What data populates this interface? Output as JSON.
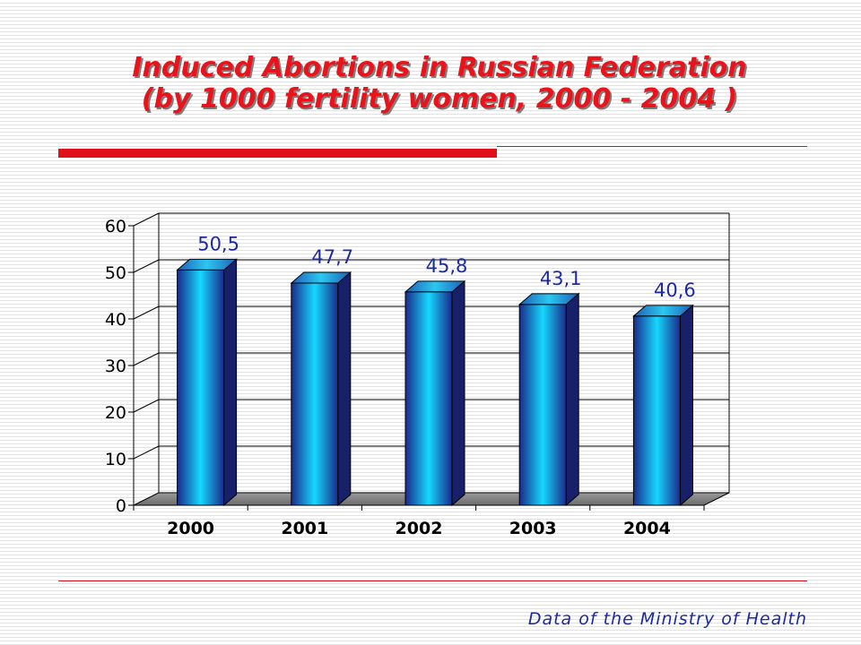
{
  "slide": {
    "title_line1": "Induced Abortions in Russian Federation",
    "title_line2": "(by 1000 fertility women, 2000 - 2004 )",
    "source_note": "Data of the Ministry of Health"
  },
  "colors": {
    "title": "#e8131b",
    "rule": "#e0101a",
    "source_text": "#1d2a9e",
    "bar_edge": "#1a2a8a",
    "bar_center": "#16d8ff",
    "data_label": "#1d2a9e"
  },
  "chart_data": {
    "type": "bar",
    "categories": [
      "2000",
      "2001",
      "2002",
      "2003",
      "2004"
    ],
    "values": [
      50.5,
      47.7,
      45.8,
      43.1,
      40.6
    ],
    "value_labels": [
      "50,5",
      "47,7",
      "45,8",
      "43,1",
      "40,6"
    ],
    "y_ticks": [
      "0",
      "10",
      "20",
      "30",
      "40",
      "50",
      "60"
    ],
    "ylim": [
      0,
      60
    ],
    "grid": true,
    "style": "3d-cylinder-bars"
  }
}
